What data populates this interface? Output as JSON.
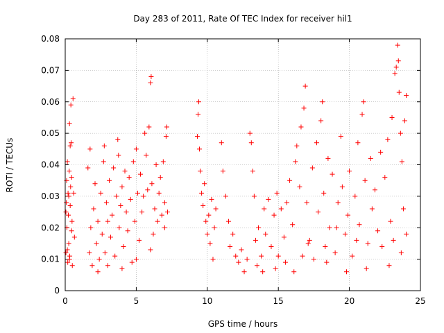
{
  "chart_data": {
    "type": "scatter",
    "title": "Day 283 of 2011, Rate Of TEC Index for receiver hil1",
    "xlabel": "GPS time / hours",
    "ylabel": "ROTI / TECUs",
    "xlim": [
      0,
      25
    ],
    "ylim": [
      0,
      0.08
    ],
    "x_ticks": [
      0,
      5,
      10,
      15,
      20,
      25
    ],
    "y_ticks": [
      0,
      0.01,
      0.02,
      0.03,
      0.04,
      0.05,
      0.06,
      0.07,
      0.08
    ],
    "x_tick_labels": [
      "0",
      "5",
      "10",
      "15",
      "20",
      "25"
    ],
    "y_tick_labels": [
      "0",
      "0.01",
      "0.02",
      "0.03",
      "0.04",
      "0.05",
      "0.06",
      "0.07",
      "0.08"
    ],
    "grid": true,
    "marker": "+",
    "color": "#ff0000",
    "series": [
      {
        "points": [
          [
            0.05,
            0.012
          ],
          [
            0.08,
            0.028
          ],
          [
            0.1,
            0.035
          ],
          [
            0.12,
            0.02
          ],
          [
            0.15,
            0.041
          ],
          [
            0.18,
            0.009
          ],
          [
            0.2,
            0.031
          ],
          [
            0.22,
            0.024
          ],
          [
            0.25,
            0.015
          ],
          [
            0.28,
            0.038
          ],
          [
            0.3,
            0.053
          ],
          [
            0.32,
            0.011
          ],
          [
            0.35,
            0.027
          ],
          [
            0.38,
            0.033
          ],
          [
            0.4,
            0.059
          ],
          [
            0.42,
            0.047
          ],
          [
            0.45,
            0.019
          ],
          [
            0.48,
            0.022
          ],
          [
            0.5,
            0.008
          ],
          [
            0.55,
            0.061
          ],
          [
            0.6,
            0.031
          ],
          [
            0.65,
            0.017
          ],
          [
            0.15,
            0.013
          ],
          [
            0.25,
            0.03
          ],
          [
            0.35,
            0.046
          ],
          [
            0.05,
            0.025
          ],
          [
            0.45,
            0.036
          ],
          [
            0.3,
            0.01
          ],
          [
            1.6,
            0.039
          ],
          [
            1.7,
            0.012
          ],
          [
            1.75,
            0.045
          ],
          [
            1.8,
            0.02
          ],
          [
            1.9,
            0.008
          ],
          [
            2.0,
            0.026
          ],
          [
            2.1,
            0.034
          ],
          [
            2.2,
            0.015
          ],
          [
            2.3,
            0.022
          ],
          [
            2.4,
            0.01
          ],
          [
            2.5,
            0.031
          ],
          [
            2.6,
            0.018
          ],
          [
            2.7,
            0.041
          ],
          [
            2.75,
            0.046
          ],
          [
            2.8,
            0.012
          ],
          [
            2.9,
            0.028
          ],
          [
            3.0,
            0.022
          ],
          [
            3.1,
            0.035
          ],
          [
            3.2,
            0.017
          ],
          [
            3.3,
            0.024
          ],
          [
            3.4,
            0.039
          ],
          [
            3.5,
            0.011
          ],
          [
            3.6,
            0.03
          ],
          [
            3.7,
            0.048
          ],
          [
            3.75,
            0.043
          ],
          [
            3.8,
            0.02
          ],
          [
            3.9,
            0.027
          ],
          [
            4.0,
            0.033
          ],
          [
            4.1,
            0.014
          ],
          [
            4.2,
            0.038
          ],
          [
            4.3,
            0.025
          ],
          [
            4.4,
            0.019
          ],
          [
            4.5,
            0.036
          ],
          [
            4.6,
            0.029
          ],
          [
            4.7,
            0.009
          ],
          [
            4.8,
            0.041
          ],
          [
            4.9,
            0.022
          ],
          [
            5.0,
            0.045
          ],
          [
            5.1,
            0.031
          ],
          [
            5.2,
            0.016
          ],
          [
            5.3,
            0.037
          ],
          [
            5.4,
            0.025
          ],
          [
            5.5,
            0.03
          ],
          [
            5.6,
            0.05
          ],
          [
            5.7,
            0.043
          ],
          [
            5.8,
            0.032
          ],
          [
            5.9,
            0.052
          ],
          [
            6.0,
            0.066
          ],
          [
            6.05,
            0.068
          ],
          [
            6.1,
            0.034
          ],
          [
            6.2,
            0.018
          ],
          [
            6.3,
            0.026
          ],
          [
            6.4,
            0.04
          ],
          [
            6.5,
            0.022
          ],
          [
            6.6,
            0.031
          ],
          [
            6.7,
            0.036
          ],
          [
            6.8,
            0.024
          ],
          [
            6.9,
            0.041
          ],
          [
            7.0,
            0.028
          ],
          [
            7.1,
            0.049
          ],
          [
            7.15,
            0.052
          ],
          [
            7.2,
            0.025
          ],
          [
            2.3,
            0.006
          ],
          [
            3.0,
            0.008
          ],
          [
            4.0,
            0.007
          ],
          [
            5.0,
            0.01
          ],
          [
            6.0,
            0.013
          ],
          [
            7.0,
            0.02
          ],
          [
            9.3,
            0.049
          ],
          [
            9.4,
            0.06
          ],
          [
            9.45,
            0.045
          ],
          [
            9.5,
            0.038
          ],
          [
            9.6,
            0.031
          ],
          [
            9.7,
            0.027
          ],
          [
            9.8,
            0.034
          ],
          [
            9.9,
            0.022
          ],
          [
            10.0,
            0.018
          ],
          [
            10.1,
            0.024
          ],
          [
            10.2,
            0.015
          ],
          [
            10.3,
            0.029
          ],
          [
            10.4,
            0.01
          ],
          [
            10.5,
            0.02
          ],
          [
            10.6,
            0.026
          ],
          [
            9.35,
            0.056
          ],
          [
            11.0,
            0.047
          ],
          [
            11.1,
            0.038
          ],
          [
            11.3,
            0.03
          ],
          [
            11.5,
            0.022
          ],
          [
            11.6,
            0.014
          ],
          [
            11.8,
            0.018
          ],
          [
            12.0,
            0.011
          ],
          [
            12.2,
            0.009
          ],
          [
            12.4,
            0.013
          ],
          [
            12.6,
            0.006
          ],
          [
            12.8,
            0.01
          ],
          [
            13.0,
            0.05
          ],
          [
            13.1,
            0.047
          ],
          [
            13.2,
            0.038
          ],
          [
            13.3,
            0.03
          ],
          [
            13.4,
            0.016
          ],
          [
            13.5,
            0.008
          ],
          [
            13.6,
            0.02
          ],
          [
            13.8,
            0.011
          ],
          [
            14.0,
            0.026
          ],
          [
            14.1,
            0.018
          ],
          [
            14.3,
            0.029
          ],
          [
            14.5,
            0.014
          ],
          [
            14.7,
            0.024
          ],
          [
            14.9,
            0.031
          ],
          [
            15.0,
            0.011
          ],
          [
            15.2,
            0.026
          ],
          [
            15.4,
            0.017
          ],
          [
            15.6,
            0.028
          ],
          [
            15.8,
            0.035
          ],
          [
            16.0,
            0.021
          ],
          [
            16.2,
            0.041
          ],
          [
            16.3,
            0.046
          ],
          [
            16.5,
            0.033
          ],
          [
            16.6,
            0.052
          ],
          [
            16.8,
            0.058
          ],
          [
            16.9,
            0.065
          ],
          [
            17.0,
            0.028
          ],
          [
            17.2,
            0.016
          ],
          [
            17.4,
            0.039
          ],
          [
            17.5,
            0.01
          ],
          [
            17.7,
            0.047
          ],
          [
            17.8,
            0.025
          ],
          [
            18.0,
            0.054
          ],
          [
            18.1,
            0.06
          ],
          [
            18.2,
            0.031
          ],
          [
            18.3,
            0.014
          ],
          [
            18.5,
            0.042
          ],
          [
            18.6,
            0.02
          ],
          [
            18.8,
            0.037
          ],
          [
            19.0,
            0.012
          ],
          [
            19.2,
            0.028
          ],
          [
            19.4,
            0.049
          ],
          [
            19.5,
            0.033
          ],
          [
            19.7,
            0.018
          ],
          [
            19.9,
            0.024
          ],
          [
            20.0,
            0.038
          ],
          [
            20.2,
            0.011
          ],
          [
            20.4,
            0.03
          ],
          [
            20.6,
            0.047
          ],
          [
            20.7,
            0.021
          ],
          [
            20.9,
            0.056
          ],
          [
            21.0,
            0.06
          ],
          [
            21.1,
            0.035
          ],
          [
            21.3,
            0.015
          ],
          [
            21.5,
            0.042
          ],
          [
            21.6,
            0.026
          ],
          [
            21.8,
            0.032
          ],
          [
            22.0,
            0.019
          ],
          [
            22.2,
            0.044
          ],
          [
            22.3,
            0.014
          ],
          [
            22.5,
            0.036
          ],
          [
            22.7,
            0.048
          ],
          [
            22.9,
            0.022
          ],
          [
            23.0,
            0.055
          ],
          [
            23.2,
            0.069
          ],
          [
            23.3,
            0.071
          ],
          [
            23.4,
            0.078
          ],
          [
            23.45,
            0.073
          ],
          [
            23.5,
            0.063
          ],
          [
            23.6,
            0.05
          ],
          [
            23.7,
            0.041
          ],
          [
            23.8,
            0.026
          ],
          [
            23.9,
            0.054
          ],
          [
            24.0,
            0.062
          ],
          [
            23.65,
            0.012
          ],
          [
            22.8,
            0.008
          ],
          [
            21.2,
            0.007
          ],
          [
            19.8,
            0.006
          ],
          [
            18.4,
            0.009
          ],
          [
            17.1,
            0.015
          ],
          [
            16.1,
            0.006
          ],
          [
            15.5,
            0.009
          ],
          [
            14.8,
            0.007
          ],
          [
            13.9,
            0.006
          ],
          [
            24.0,
            0.018
          ],
          [
            23.1,
            0.016
          ],
          [
            20.5,
            0.016
          ],
          [
            19.1,
            0.02
          ],
          [
            16.7,
            0.011
          ]
        ]
      }
    ]
  }
}
